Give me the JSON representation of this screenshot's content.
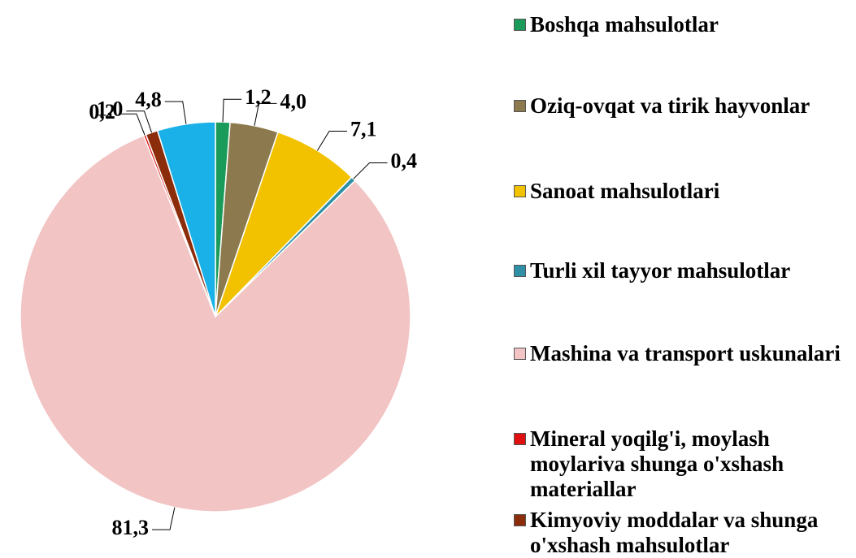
{
  "chart_data": {
    "type": "pie",
    "categories": [
      "Boshqa mahsulotlar",
      "Oziq-ovqat va tirik hayvonlar",
      "Sanoat mahsulotlari",
      "Turli xil tayyor mahsulotlar",
      "Mashina va transport uskunalari",
      "Mineral yoqilg'i, moylash moylariva shunga o'xshash materiallar",
      "Kimyoviy moddalar va shunga o'xshash mahsulotlar",
      null
    ],
    "values": [
      1.2,
      4.0,
      7.1,
      0.4,
      81.3,
      0.2,
      1.0,
      4.8
    ],
    "value_labels": [
      "1,2",
      "4,0",
      "7,1",
      "0,4",
      "81,3",
      "0,2",
      "1,0",
      "4,8"
    ],
    "colors": [
      "#1a9b5a",
      "#8c7a4e",
      "#f2c200",
      "#2e8fa5",
      "#f2c4c4",
      "#e01010",
      "#8b2c0a",
      "#1ab0e8"
    ],
    "legend": "right"
  }
}
